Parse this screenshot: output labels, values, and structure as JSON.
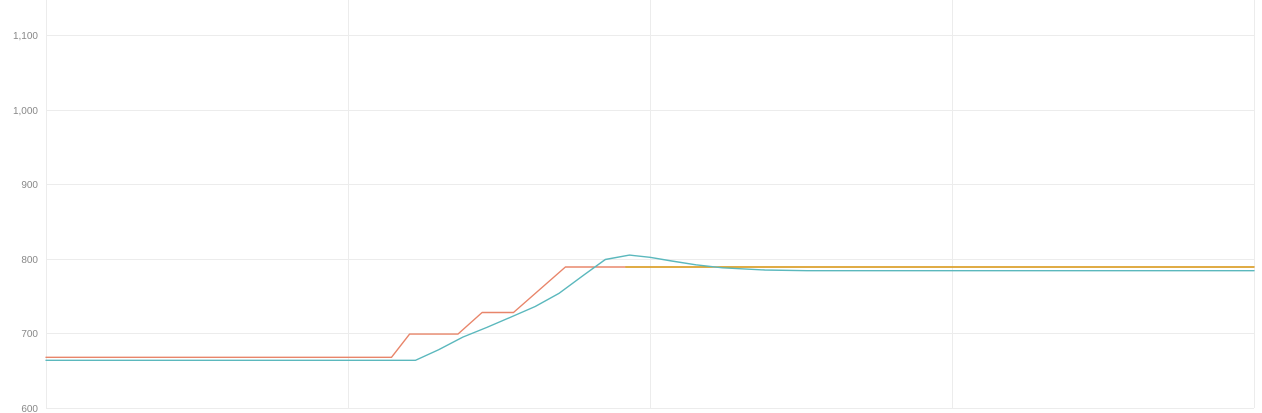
{
  "chart_data": {
    "type": "line",
    "title": "",
    "xlabel": "",
    "ylabel": "",
    "xlim": [
      0,
      100
    ],
    "ylim": [
      600,
      1100
    ],
    "y_ticks": [
      600,
      700,
      800,
      900,
      1000,
      1100
    ],
    "y_tick_labels": [
      "600",
      "700",
      "800",
      "900",
      "1,000",
      "1,100"
    ],
    "x_gridlines": [
      0,
      25,
      50,
      75,
      100
    ],
    "grid": true,
    "legend": "none",
    "series": [
      {
        "color": "#e8856a",
        "points": [
          [
            0,
            668
          ],
          [
            28.6,
            668
          ],
          [
            30.1,
            699
          ],
          [
            34.1,
            699
          ],
          [
            36.1,
            728
          ],
          [
            38.7,
            728
          ],
          [
            43.0,
            789
          ],
          [
            60,
            789
          ],
          [
            100,
            789
          ]
        ]
      },
      {
        "color": "#d9a521",
        "points": [
          [
            48,
            789
          ],
          [
            60,
            789
          ],
          [
            100,
            789
          ]
        ]
      },
      {
        "color": "#5bb8bd",
        "points": [
          [
            0,
            664
          ],
          [
            30.6,
            664
          ],
          [
            32.5,
            678
          ],
          [
            34.5,
            695
          ],
          [
            36.5,
            708
          ],
          [
            38.5,
            722
          ],
          [
            40.5,
            736
          ],
          [
            42.5,
            754
          ],
          [
            44.5,
            778
          ],
          [
            46.3,
            799
          ],
          [
            48.3,
            805
          ],
          [
            50.0,
            802
          ],
          [
            51.8,
            797
          ],
          [
            53.8,
            792
          ],
          [
            56.0,
            788
          ],
          [
            59.5,
            785
          ],
          [
            63,
            784
          ],
          [
            100,
            784
          ]
        ]
      }
    ]
  }
}
